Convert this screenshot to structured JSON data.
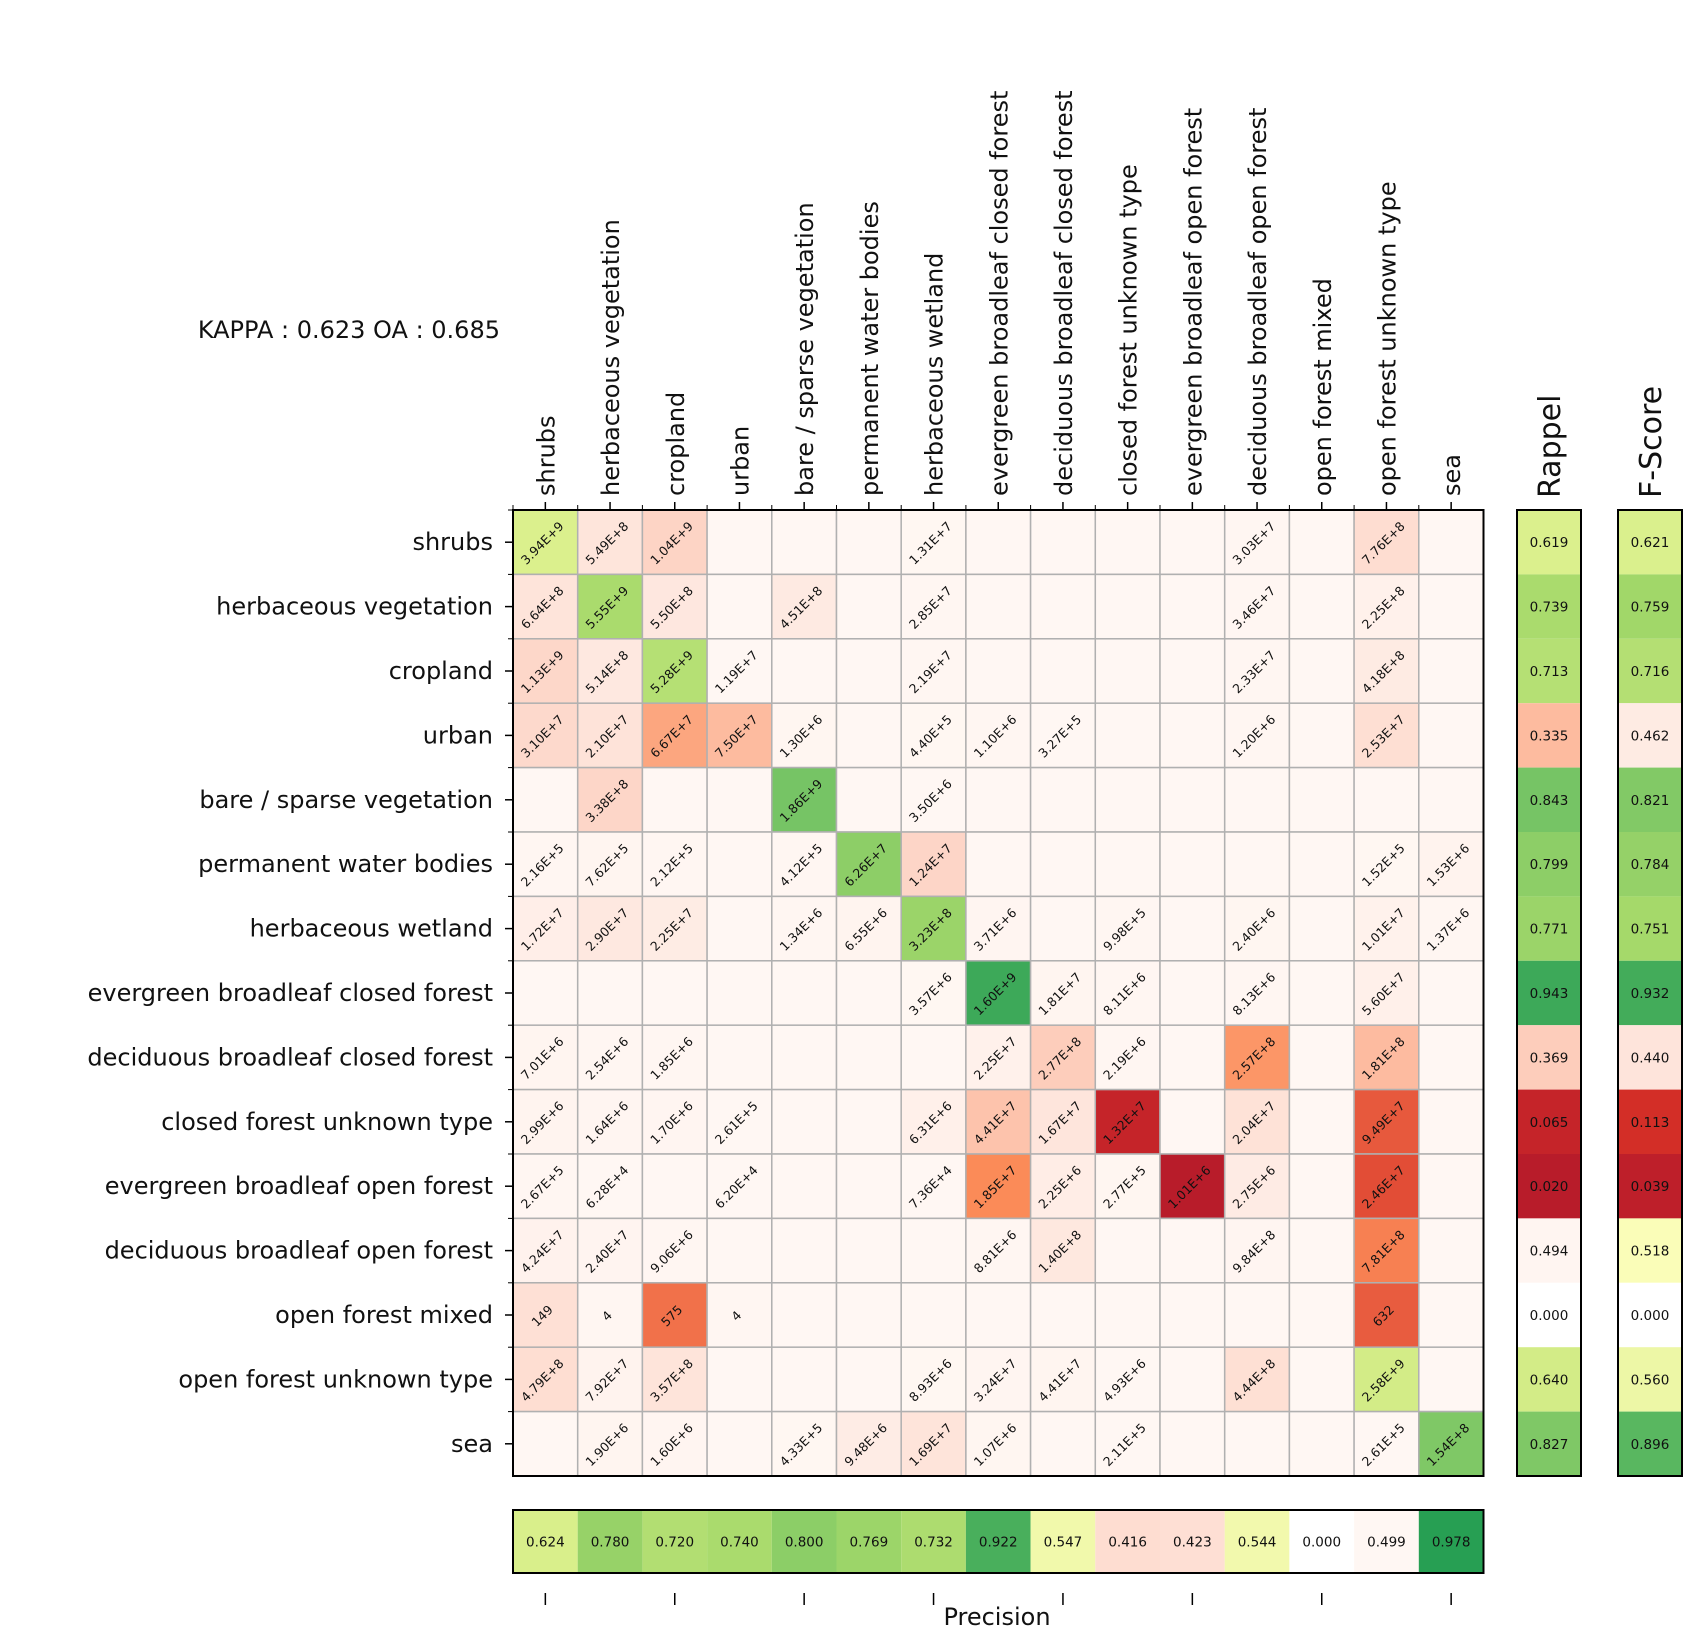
{
  "chart_data": {
    "type": "heatmap",
    "title": "KAPPA : 0.623 OA : 0.685",
    "classes": [
      "shrubs",
      "herbaceous vegetation",
      "cropland",
      "urban",
      "bare / sparse vegetation",
      "permanent water bodies",
      "herbaceous wetland",
      "evergreen broadleaf closed forest",
      "deciduous broadleaf closed forest",
      "closed forest unknown type",
      "evergreen broadleaf open forest",
      "deciduous broadleaf open forest",
      "open forest mixed",
      "open forest unknown type",
      "sea"
    ],
    "matrix": [
      [
        "3.94E+9",
        "5.49E+8",
        "1.04E+9",
        "",
        "",
        "",
        "1.31E+7",
        "",
        "",
        "",
        "",
        "3.03E+7",
        "",
        "7.76E+8",
        ""
      ],
      [
        "6.64E+8",
        "5.55E+9",
        "5.50E+8",
        "",
        "4.51E+8",
        "",
        "2.85E+7",
        "",
        "",
        "",
        "",
        "3.46E+7",
        "",
        "2.25E+8",
        ""
      ],
      [
        "1.13E+9",
        "5.14E+8",
        "5.28E+9",
        "1.19E+7",
        "",
        "",
        "2.19E+7",
        "",
        "",
        "",
        "",
        "2.33E+7",
        "",
        "4.18E+8",
        ""
      ],
      [
        "3.10E+7",
        "2.10E+7",
        "6.67E+7",
        "7.50E+7",
        "1.30E+6",
        "",
        "4.40E+5",
        "1.10E+6",
        "3.27E+5",
        "",
        "",
        "1.20E+6",
        "",
        "2.53E+7",
        ""
      ],
      [
        "",
        "3.38E+8",
        "",
        "",
        "1.86E+9",
        "",
        "3.50E+6",
        "",
        "",
        "",
        "",
        "",
        "",
        "",
        ""
      ],
      [
        "2.16E+5",
        "7.62E+5",
        "2.12E+5",
        "",
        "4.12E+5",
        "6.26E+7",
        "1.24E+7",
        "",
        "",
        "",
        "",
        "",
        "",
        "1.52E+5",
        "1.53E+6"
      ],
      [
        "1.72E+7",
        "2.90E+7",
        "2.25E+7",
        "",
        "1.34E+6",
        "6.55E+6",
        "3.23E+8",
        "3.71E+6",
        "",
        "9.98E+5",
        "",
        "2.40E+6",
        "",
        "1.01E+7",
        "1.37E+6"
      ],
      [
        "",
        "",
        "",
        "",
        "",
        "",
        "3.57E+6",
        "1.60E+9",
        "1.81E+7",
        "8.11E+6",
        "",
        "8.13E+6",
        "",
        "5.60E+7",
        ""
      ],
      [
        "7.01E+6",
        "2.54E+6",
        "1.85E+6",
        "",
        "",
        "",
        "",
        "2.25E+7",
        "2.77E+8",
        "2.19E+6",
        "",
        "2.57E+8",
        "",
        "1.81E+8",
        ""
      ],
      [
        "2.99E+6",
        "1.64E+6",
        "1.70E+6",
        "2.61E+5",
        "",
        "",
        "6.31E+6",
        "4.41E+7",
        "1.67E+7",
        "1.32E+7",
        "",
        "2.04E+7",
        "",
        "9.49E+7",
        ""
      ],
      [
        "2.67E+5",
        "6.28E+4",
        "",
        "6.20E+4",
        "",
        "",
        "7.36E+4",
        "1.85E+7",
        "2.25E+6",
        "2.77E+5",
        "1.01E+6",
        "2.75E+6",
        "",
        "2.46E+7",
        ""
      ],
      [
        "4.24E+7",
        "2.40E+7",
        "9.06E+6",
        "",
        "",
        "",
        "",
        "8.81E+6",
        "1.40E+8",
        "",
        "",
        "9.84E+8",
        "",
        "7.81E+8",
        ""
      ],
      [
        "149",
        "4",
        "575",
        "4",
        "",
        "",
        "",
        "",
        "",
        "",
        "",
        "",
        "",
        "632",
        ""
      ],
      [
        "4.79E+8",
        "7.92E+7",
        "3.57E+8",
        "",
        "",
        "",
        "8.93E+6",
        "3.24E+7",
        "4.41E+7",
        "4.93E+6",
        "",
        "4.44E+8",
        "",
        "2.58E+9",
        ""
      ],
      [
        "",
        "1.90E+6",
        "1.60E+6",
        "",
        "4.33E+5",
        "9.48E+6",
        "1.69E+7",
        "1.07E+6",
        "",
        "2.11E+5",
        "",
        "",
        "",
        "2.61E+5",
        "1.54E+8"
      ]
    ],
    "precision": {
      "label": "Precision",
      "values": [
        "0.624",
        "0.780",
        "0.720",
        "0.740",
        "0.800",
        "0.769",
        "0.732",
        "0.922",
        "0.547",
        "0.416",
        "0.423",
        "0.544",
        "0.000",
        "0.499",
        "0.978"
      ]
    },
    "recall": {
      "label": "Rappel",
      "values": [
        "0.619",
        "0.739",
        "0.713",
        "0.335",
        "0.843",
        "0.799",
        "0.771",
        "0.943",
        "0.369",
        "0.065",
        "0.020",
        "0.494",
        "0.000",
        "0.640",
        "0.827"
      ]
    },
    "fscore": {
      "label": "F-Score",
      "values": [
        "0.621",
        "0.759",
        "0.716",
        "0.462",
        "0.821",
        "0.784",
        "0.751",
        "0.932",
        "0.440",
        "0.113",
        "0.039",
        "0.518",
        "0.000",
        "0.560",
        "0.896"
      ]
    },
    "colormap": {
      "good_scale": [
        "#ffffbf",
        "#d9ef8b",
        "#a6d96a",
        "#66bd63",
        "#1a9850"
      ],
      "bad_scale": [
        "#fff7f3",
        "#fdd0c0",
        "#fc8d59",
        "#d73027",
        "#b2182b"
      ],
      "zero_color": "#ffffff",
      "empty_cell": "#fff7f3"
    }
  }
}
